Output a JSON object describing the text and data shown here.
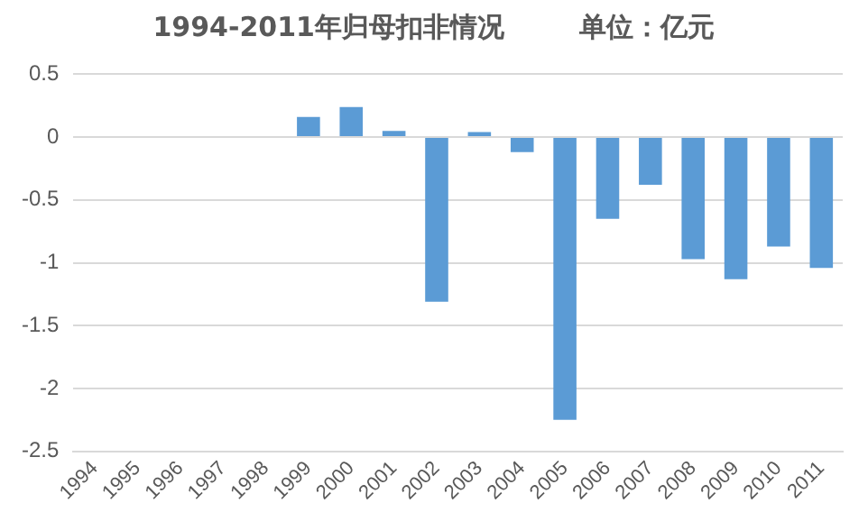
{
  "chart_data": {
    "type": "bar",
    "title": "1994-2011年归母扣非情况        单位：亿元",
    "categories": [
      "1994",
      "1995",
      "1996",
      "1997",
      "1998",
      "1999",
      "2000",
      "2001",
      "2002",
      "2003",
      "2004",
      "2005",
      "2006",
      "2007",
      "2008",
      "2009",
      "2010",
      "2011"
    ],
    "values": [
      0,
      0,
      0,
      0,
      0,
      0.16,
      0.24,
      0.05,
      -1.31,
      0.04,
      -0.12,
      -2.25,
      -0.65,
      -0.38,
      -0.97,
      -1.13,
      -0.87,
      -1.04
    ],
    "color": "#5b9bd5",
    "ylim": [
      -2.5,
      0.5
    ],
    "yticks": [
      0.5,
      0,
      -0.5,
      -1,
      -1.5,
      -2,
      -2.5
    ],
    "grid": "y",
    "legend": false
  }
}
